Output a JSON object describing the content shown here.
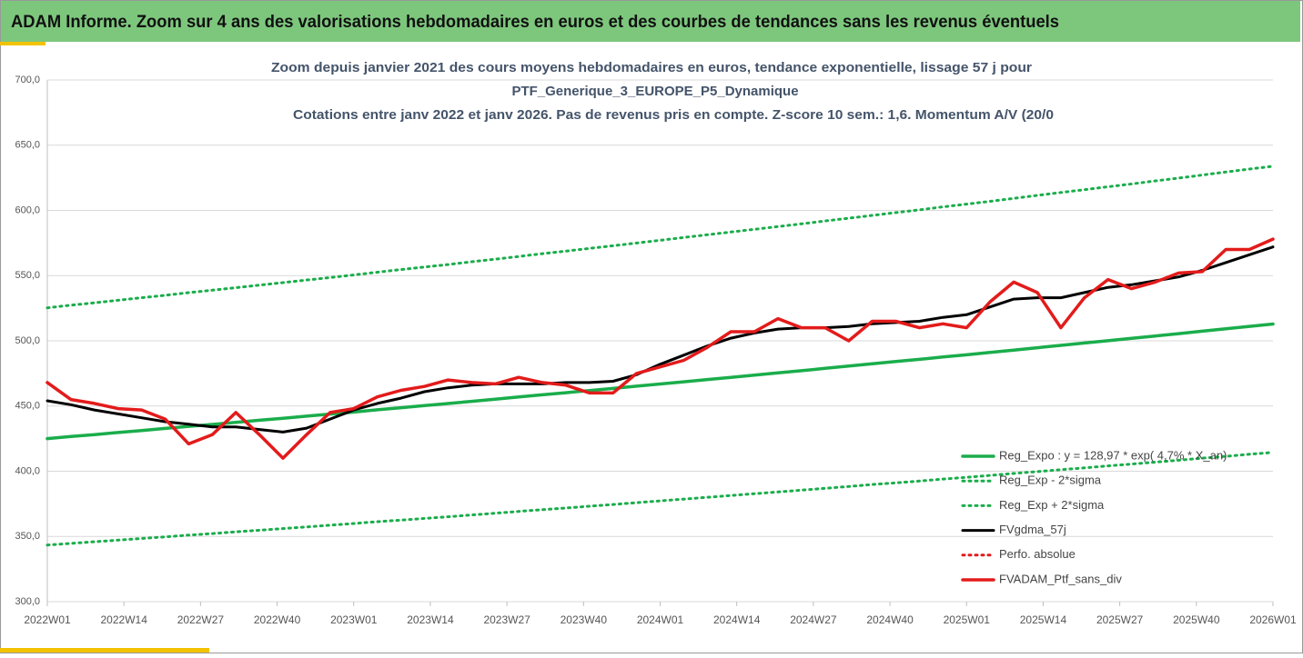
{
  "header": {
    "title": "ADAM Informe. Zoom sur 4 ans des valorisations hebdomadaires en euros et des courbes de tendances sans les revenus éventuels"
  },
  "chart_data": {
    "type": "line",
    "title": [
      "Zoom depuis janvier 2021 des cours moyens hebdomadaires  en euros, tendance exponentielle, lissage 57 j pour",
      "PTF_Generique_3_EUROPE_P5_Dynamique",
      "Cotations entre janv 2022 et janv 2026. Pas de revenus pris en compte. Z-score 10 sem.: 1,6. Momentum A/V (20/0"
    ],
    "x": [
      0,
      4,
      8,
      12,
      16,
      20,
      24,
      28,
      32,
      36,
      40,
      44,
      48,
      52,
      56,
      60,
      64,
      68,
      72,
      76,
      80,
      84,
      88,
      92,
      96,
      100,
      104,
      108,
      112,
      116,
      120,
      124,
      128,
      132,
      136,
      140,
      144,
      148,
      152,
      156,
      160,
      164,
      168,
      172,
      176,
      180,
      184,
      188,
      192,
      196,
      200,
      204,
      208
    ],
    "xlim": [
      0,
      208
    ],
    "xticks": [
      {
        "value": 0,
        "label": "2022W01"
      },
      {
        "value": 13,
        "label": "2022W14"
      },
      {
        "value": 26,
        "label": "2022W27"
      },
      {
        "value": 39,
        "label": "2022W40"
      },
      {
        "value": 52,
        "label": "2023W01"
      },
      {
        "value": 65,
        "label": "2023W14"
      },
      {
        "value": 78,
        "label": "2023W27"
      },
      {
        "value": 91,
        "label": "2023W40"
      },
      {
        "value": 104,
        "label": "2024W01"
      },
      {
        "value": 117,
        "label": "2024W14"
      },
      {
        "value": 130,
        "label": "2024W27"
      },
      {
        "value": 143,
        "label": "2024W40"
      },
      {
        "value": 156,
        "label": "2025W01"
      },
      {
        "value": 169,
        "label": "2025W14"
      },
      {
        "value": 182,
        "label": "2025W27"
      },
      {
        "value": 195,
        "label": "2025W40"
      },
      {
        "value": 208,
        "label": "2026W01"
      }
    ],
    "ylim": [
      300,
      700
    ],
    "yticks": [
      {
        "value": 300,
        "label": "300,0"
      },
      {
        "value": 350,
        "label": "350,0"
      },
      {
        "value": 400,
        "label": "400,0"
      },
      {
        "value": 450,
        "label": "450,0"
      },
      {
        "value": 500,
        "label": "500,0"
      },
      {
        "value": 550,
        "label": "550,0"
      },
      {
        "value": 600,
        "label": "600,0"
      },
      {
        "value": 650,
        "label": "650,0"
      },
      {
        "value": 700,
        "label": "700,0"
      }
    ],
    "grid": true,
    "legend": "bottom-right",
    "series": [
      {
        "name": "Reg_Expo : y = 128,97 * exp( 4,7% * X_an)",
        "color": "#1aad4b",
        "dash": "solid",
        "values": [
          425.0,
          426.6,
          428.1,
          429.7,
          431.2,
          432.8,
          434.4,
          435.9,
          437.5,
          439.1,
          440.6,
          442.2,
          443.8,
          445.4,
          447.1,
          448.7,
          450.3,
          451.9,
          453.6,
          455.2,
          456.9,
          458.6,
          460.2,
          461.9,
          463.5,
          465.2,
          466.9,
          468.6,
          470.3,
          472.0,
          473.7,
          475.4,
          477.1,
          478.9,
          480.6,
          482.4,
          484.1,
          485.8,
          487.6,
          489.3,
          491.1,
          492.9,
          494.7,
          496.5,
          498.3,
          500.1,
          501.9,
          503.7,
          505.5,
          507.4,
          509.2,
          511.1,
          512.9
        ]
      },
      {
        "name": "Reg_Exp - 2*sigma",
        "color": "#1aad4b",
        "dash": "dotted",
        "values": [
          343.4,
          344.7,
          345.9,
          347.2,
          348.4,
          349.7,
          351.0,
          352.2,
          353.5,
          354.8,
          356.0,
          357.3,
          358.6,
          359.9,
          361.3,
          362.5,
          363.8,
          365.1,
          366.5,
          367.8,
          369.2,
          370.5,
          371.8,
          373.2,
          374.5,
          375.9,
          377.3,
          378.6,
          380.0,
          381.4,
          382.8,
          384.1,
          385.5,
          386.9,
          388.3,
          389.8,
          391.1,
          392.5,
          394.0,
          395.3,
          396.8,
          398.3,
          399.7,
          401.2,
          402.6,
          404.1,
          405.5,
          407.0,
          408.4,
          410.0,
          411.4,
          413.0,
          414.4
        ]
      },
      {
        "name": "Reg_Exp + 2*sigma",
        "color": "#1aad4b",
        "dash": "dotted",
        "values": [
          525.3,
          527.3,
          529.1,
          531.1,
          533.0,
          534.9,
          536.9,
          538.8,
          540.8,
          542.7,
          544.6,
          546.6,
          548.5,
          550.5,
          552.6,
          554.6,
          556.6,
          558.5,
          560.6,
          562.6,
          564.7,
          566.8,
          568.8,
          570.9,
          572.9,
          575.0,
          577.1,
          579.2,
          581.3,
          583.4,
          585.5,
          587.6,
          589.7,
          591.9,
          594.0,
          596.2,
          598.3,
          600.4,
          602.7,
          604.8,
          607.0,
          609.2,
          611.5,
          613.7,
          615.9,
          618.1,
          620.3,
          622.6,
          624.8,
          627.1,
          629.4,
          631.7,
          633.9
        ]
      },
      {
        "name": "FVgdma_57j",
        "color": "#000000",
        "dash": "solid",
        "values": [
          454,
          451,
          447,
          444,
          441,
          438,
          436,
          434,
          434,
          432,
          430,
          433,
          440,
          447,
          452,
          456,
          461,
          464,
          466,
          467,
          467,
          467,
          468,
          468,
          469,
          474,
          482,
          489,
          496,
          502,
          506,
          509,
          510,
          510,
          511,
          513,
          514,
          515,
          518,
          520,
          526,
          532,
          533,
          533,
          537,
          541,
          543,
          546,
          549,
          554,
          560,
          566,
          572
        ]
      },
      {
        "name": "Perfo. absolue",
        "color": "#e31b1b",
        "dash": "dotted"
      },
      {
        "name": "FVADAM_Ptf_sans_div",
        "color": "#e31b1b",
        "dash": "solid",
        "values": [
          468,
          455,
          452,
          448,
          447,
          440,
          421,
          428,
          445,
          428,
          410,
          428,
          445,
          448,
          457,
          462,
          465,
          470,
          468,
          467,
          472,
          468,
          466,
          460,
          460,
          475,
          480,
          485,
          495,
          507,
          507,
          517,
          510,
          510,
          500,
          515,
          515,
          510,
          513,
          510,
          530,
          545,
          537,
          510,
          533,
          547,
          540,
          545,
          552,
          553,
          570,
          570,
          578
        ]
      }
    ]
  }
}
